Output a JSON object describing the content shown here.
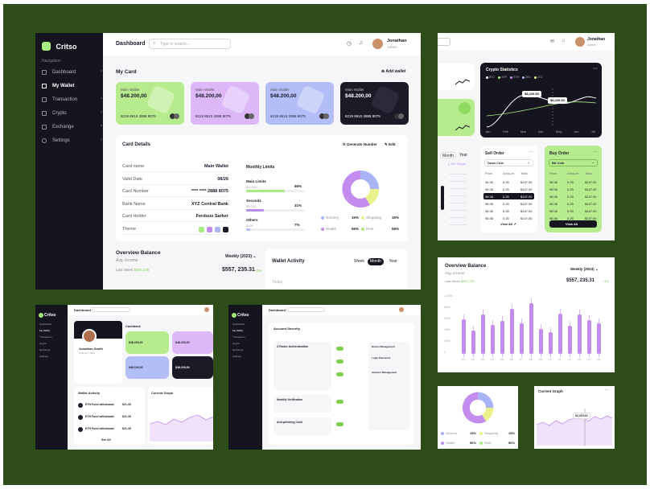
{
  "brand": {
    "name": "Critso"
  },
  "header": {
    "title": "Dashboard",
    "search_placeholder": "Type to search....",
    "user_name": "Jonathan",
    "user_role": "Admin"
  },
  "nav": {
    "section": "Navigation",
    "items": [
      {
        "label": "Dashboard"
      },
      {
        "label": "My Wallet"
      },
      {
        "label": "Transaction"
      },
      {
        "label": "Crypto"
      },
      {
        "label": "Exchange"
      },
      {
        "label": "Settings"
      }
    ]
  },
  "my_card": {
    "title": "My Card",
    "add_label": "Add wallet",
    "cards": [
      {
        "label": "Main Wallet",
        "amount": "$48.200,00",
        "number": "6219 8610 2888 8075",
        "color": "#b7ec8e"
      },
      {
        "label": "Main Wallet",
        "amount": "$48.200,00",
        "number": "6219 8610 2888 8075",
        "color": "#dcb8f8"
      },
      {
        "label": "Main Wallet",
        "amount": "$48.200,00",
        "number": "6219 8610 2888 8075",
        "color": "#b3bdf8"
      },
      {
        "label": "Main Wallet",
        "amount": "$48.200,00",
        "number": "6219 8610 2888 8075",
        "color": "#1b1b28"
      }
    ]
  },
  "card_details": {
    "title": "Card Details",
    "generate": "Generate Number",
    "edit": "Edit",
    "rows": [
      {
        "k": "Card name",
        "v": "Main Wallet"
      },
      {
        "k": "Valid Date",
        "v": "08/26"
      },
      {
        "k": "Card Number",
        "v": "**** **** 2888 8075"
      },
      {
        "k": "Bank Name",
        "v": "XYZ Central Bank"
      },
      {
        "k": "Card Holder",
        "v": "Ferdous Sarker"
      },
      {
        "k": "Theme",
        "v": ""
      }
    ],
    "limits_title": "Monthly Limits",
    "limits": [
      {
        "name": "Main Limits",
        "sub": "$20.000",
        "pct": "66%",
        "fill": 0.66,
        "color": "#a6ec7e"
      },
      {
        "name": "Seconds",
        "sub": "$5.000",
        "pct": "31%",
        "fill": 0.31,
        "color": "#b68bf3"
      },
      {
        "name": "Others",
        "sub": "$100",
        "pct": "7%",
        "fill": 0.07,
        "color": "#b3bdf8"
      }
    ],
    "legend": [
      {
        "name": "Grocery",
        "pct": "15%",
        "color": "#a9b4f7"
      },
      {
        "name": "Shopping",
        "pct": "15%",
        "color": "#e9f28a"
      },
      {
        "name": "Health",
        "pct": "56%",
        "color": "#c58cf0"
      },
      {
        "name": "Rent",
        "pct": "56%",
        "color": "#a6ec7e"
      }
    ]
  },
  "overview": {
    "title": "Overview Balance",
    "sub": "Avg. income",
    "period": "Weekly (2023)",
    "last_week": "Last Week",
    "last_week_val": "$557,235",
    "amount": "$557, 235.31",
    "change": "+1%",
    "y_ticks": [
      "1,000k",
      "800k",
      "600k",
      "400k",
      "200k",
      "0"
    ],
    "x_ticks": [
      "01",
      "02",
      "03",
      "04",
      "05",
      "06",
      "07",
      "08",
      "09",
      "10",
      "11",
      "12",
      "13",
      "14",
      "15"
    ]
  },
  "wallet_activity": {
    "title": "Wallet Activity",
    "tabs": [
      "Week",
      "Month",
      "Year"
    ],
    "today": "Today",
    "items": [
      "ETH Fund withdrawal",
      "ETH Fund withdrawal",
      "ETH Fund withdrawal"
    ],
    "amounts": [
      "$21.45",
      "$21.45",
      "$21.45"
    ],
    "see_all": "See All"
  },
  "crypto_stats": {
    "title": "Crypto Statistics",
    "coins": [
      "BTC",
      "XRP",
      "ETH",
      "ZEC",
      "LTC"
    ],
    "tip1": "$8,420.50",
    "tip2": "$8,420.50",
    "months": [
      "Jan",
      "Feb",
      "Mar",
      "Apr",
      "May",
      "Jun",
      "Jul"
    ]
  },
  "sell_order": {
    "title": "Sell Order",
    "coin": "Dush Coin",
    "headers": [
      "Price",
      "Amount",
      "Total"
    ],
    "rows": [
      [
        "98.36",
        "0.25",
        "$147.00"
      ],
      [
        "98.36",
        "0.25",
        "$147.00"
      ],
      [
        "98.36",
        "0.25",
        "$147.00"
      ],
      [
        "98.36",
        "0.25",
        "$147.00"
      ],
      [
        "98.36",
        "0.25",
        "$147.00"
      ],
      [
        "98.36",
        "0.25",
        "$147.00"
      ]
    ],
    "view": "View All"
  },
  "buy_order": {
    "title": "Buy Order",
    "coin": "Bit Coin",
    "headers": [
      "Price",
      "Amount",
      "Total"
    ],
    "rows": [
      [
        "98.36",
        "0.25",
        "$147.00"
      ],
      [
        "98.36",
        "0.25",
        "$147.00"
      ],
      [
        "98.36",
        "0.25",
        "$147.00"
      ],
      [
        "98.36",
        "0.25",
        "$147.00"
      ],
      [
        "98.36",
        "0.25",
        "$147.00"
      ],
      [
        "98.36",
        "0.25",
        "$147.00"
      ]
    ],
    "view": "View All"
  },
  "mini_tabs": {
    "month": "Month",
    "year": "Year",
    "get_report": "Get Report"
  },
  "account_security": {
    "title": "Account Security",
    "items": [
      "2-Factor Authentication",
      "Identify Verification",
      "Anti-phishing Code"
    ],
    "side": [
      "Device Management",
      "Login Password",
      "Address Management"
    ]
  },
  "profile": {
    "name": "Jonathan Smith",
    "role": "Collector, 2020",
    "cashback": "Cashback"
  },
  "current_graph": {
    "title": "Current Graph",
    "value": "$2,315.32"
  }
}
